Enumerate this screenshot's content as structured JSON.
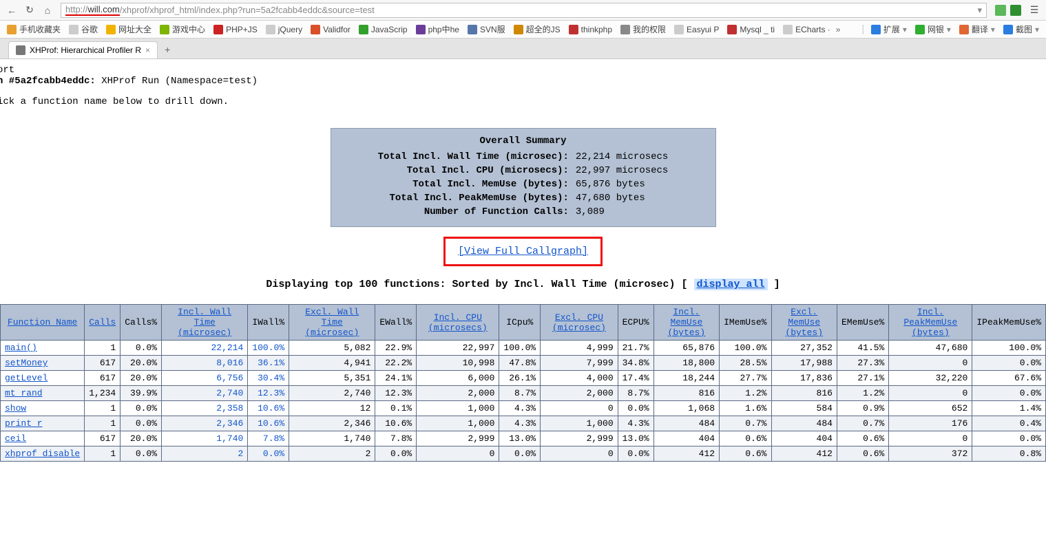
{
  "browser": {
    "url_display_pre": "http://",
    "url_domain": "will.com",
    "url_path": "/xhprof/xhprof_html/index.php?run=5a2fcabb4eddc&source=test",
    "ext_colors": [
      "#5bb85b",
      "#2f8f2f"
    ]
  },
  "bookmarks": [
    {
      "label": "手机收藏夹",
      "color": "#e8a030"
    },
    {
      "label": "谷歌",
      "color": "#cccccc"
    },
    {
      "label": "网址大全",
      "color": "#f0b400"
    },
    {
      "label": "游戏中心",
      "color": "#7db500"
    },
    {
      "label": "PHP+JS",
      "color": "#cc2222"
    },
    {
      "label": "jQuery",
      "color": "#cccccc"
    },
    {
      "label": "Validfor",
      "color": "#d94f2a"
    },
    {
      "label": "JavaScrip",
      "color": "#33a02c"
    },
    {
      "label": "php中he",
      "color": "#6a3d9a"
    },
    {
      "label": "SVN服",
      "color": "#5577aa"
    },
    {
      "label": "超全的JS",
      "color": "#d08800"
    },
    {
      "label": "thinkphp",
      "color": "#c03030"
    },
    {
      "label": "我的权限",
      "color": "#888888"
    },
    {
      "label": "Easyui P",
      "color": "#cccccc"
    },
    {
      "label": "Mysql _ ti",
      "color": "#c03030"
    },
    {
      "label": "ECharts ·",
      "color": "#cccccc"
    }
  ],
  "bookmarks_right": [
    {
      "label": "扩展",
      "color": "#2a7de1"
    },
    {
      "label": "网银",
      "color": "#2fae2f"
    },
    {
      "label": "翻译",
      "color": "#e06633"
    },
    {
      "label": "截图",
      "color": "#2a7de1"
    }
  ],
  "tab": {
    "title": "XHProf: Hierarchical Profiler R"
  },
  "report": {
    "line1": "ort",
    "line2_prefix": "n #5a2fcabb4eddc:",
    "line2_rest": " XHProf Run (Namespace=test)",
    "instruction": "ick a function name below to drill down."
  },
  "summary": {
    "title": "Overall Summary",
    "rows": [
      {
        "label": "Total Incl. Wall Time (microsec):",
        "value": "22,214 microsecs"
      },
      {
        "label": "Total Incl. CPU (microsecs):",
        "value": "22,997 microsecs"
      },
      {
        "label": "Total Incl. MemUse (bytes):",
        "value": "65,876 bytes"
      },
      {
        "label": "Total Incl. PeakMemUse (bytes):",
        "value": "47,680 bytes"
      },
      {
        "label": "Number of Function Calls:",
        "value": "3,089"
      }
    ]
  },
  "callgraph_label": "[View Full Callgraph]",
  "display_line": {
    "prefix": "Displaying top 100 functions: Sorted by Incl. Wall Time (microsec) ",
    "bracket_open": "[ ",
    "link": "display all",
    "bracket_close": " ]"
  },
  "table": {
    "headers": [
      {
        "label": "Function Name",
        "link": true
      },
      {
        "label": "Calls",
        "link": true
      },
      {
        "label": "Calls%",
        "link": false
      },
      {
        "label": "Incl. Wall Time (microsec)",
        "link": true
      },
      {
        "label": "IWall%",
        "link": false
      },
      {
        "label": "Excl. Wall Time (microsec)",
        "link": true
      },
      {
        "label": "EWall%",
        "link": false
      },
      {
        "label": "Incl. CPU (microsecs)",
        "link": true
      },
      {
        "label": "ICpu%",
        "link": false
      },
      {
        "label": "Excl. CPU (microsec)",
        "link": true
      },
      {
        "label": "ECPU%",
        "link": false
      },
      {
        "label": "Incl. MemUse (bytes)",
        "link": true
      },
      {
        "label": "IMemUse%",
        "link": false
      },
      {
        "label": "Excl. MemUse (bytes)",
        "link": true
      },
      {
        "label": "EMemUse%",
        "link": false
      },
      {
        "label": "Incl. PeakMemUse (bytes)",
        "link": true
      },
      {
        "label": "IPeakMemUse%",
        "link": false
      }
    ],
    "rows": [
      {
        "fn": "main()",
        "calls": "1",
        "callsp": "0.0%",
        "iwt": "22,214",
        "iwtp": "100.0%",
        "ewt": "5,082",
        "ewtp": "22.9%",
        "icpu": "22,997",
        "icpup": "100.0%",
        "ecpu": "4,999",
        "ecpup": "21.7%",
        "imu": "65,876",
        "imup": "100.0%",
        "emu": "27,352",
        "emup": "41.5%",
        "ipmu": "47,680",
        "ipmup": "100.0%"
      },
      {
        "fn": "setMoney",
        "calls": "617",
        "callsp": "20.0%",
        "iwt": "8,016",
        "iwtp": "36.1%",
        "ewt": "4,941",
        "ewtp": "22.2%",
        "icpu": "10,998",
        "icpup": "47.8%",
        "ecpu": "7,999",
        "ecpup": "34.8%",
        "imu": "18,800",
        "imup": "28.5%",
        "emu": "17,988",
        "emup": "27.3%",
        "ipmu": "0",
        "ipmup": "0.0%"
      },
      {
        "fn": "getLevel",
        "calls": "617",
        "callsp": "20.0%",
        "iwt": "6,756",
        "iwtp": "30.4%",
        "ewt": "5,351",
        "ewtp": "24.1%",
        "icpu": "6,000",
        "icpup": "26.1%",
        "ecpu": "4,000",
        "ecpup": "17.4%",
        "imu": "18,244",
        "imup": "27.7%",
        "emu": "17,836",
        "emup": "27.1%",
        "ipmu": "32,220",
        "ipmup": "67.6%"
      },
      {
        "fn": "mt_rand",
        "calls": "1,234",
        "callsp": "39.9%",
        "iwt": "2,740",
        "iwtp": "12.3%",
        "ewt": "2,740",
        "ewtp": "12.3%",
        "icpu": "2,000",
        "icpup": "8.7%",
        "ecpu": "2,000",
        "ecpup": "8.7%",
        "imu": "816",
        "imup": "1.2%",
        "emu": "816",
        "emup": "1.2%",
        "ipmu": "0",
        "ipmup": "0.0%"
      },
      {
        "fn": "show",
        "calls": "1",
        "callsp": "0.0%",
        "iwt": "2,358",
        "iwtp": "10.6%",
        "ewt": "12",
        "ewtp": "0.1%",
        "icpu": "1,000",
        "icpup": "4.3%",
        "ecpu": "0",
        "ecpup": "0.0%",
        "imu": "1,068",
        "imup": "1.6%",
        "emu": "584",
        "emup": "0.9%",
        "ipmu": "652",
        "ipmup": "1.4%"
      },
      {
        "fn": "print_r",
        "calls": "1",
        "callsp": "0.0%",
        "iwt": "2,346",
        "iwtp": "10.6%",
        "ewt": "2,346",
        "ewtp": "10.6%",
        "icpu": "1,000",
        "icpup": "4.3%",
        "ecpu": "1,000",
        "ecpup": "4.3%",
        "imu": "484",
        "imup": "0.7%",
        "emu": "484",
        "emup": "0.7%",
        "ipmu": "176",
        "ipmup": "0.4%"
      },
      {
        "fn": "ceil",
        "calls": "617",
        "callsp": "20.0%",
        "iwt": "1,740",
        "iwtp": "7.8%",
        "ewt": "1,740",
        "ewtp": "7.8%",
        "icpu": "2,999",
        "icpup": "13.0%",
        "ecpu": "2,999",
        "ecpup": "13.0%",
        "imu": "404",
        "imup": "0.6%",
        "emu": "404",
        "emup": "0.6%",
        "ipmu": "0",
        "ipmup": "0.0%"
      },
      {
        "fn": "xhprof_disable",
        "calls": "1",
        "callsp": "0.0%",
        "iwt": "2",
        "iwtp": "0.0%",
        "ewt": "2",
        "ewtp": "0.0%",
        "icpu": "0",
        "icpup": "0.0%",
        "ecpu": "0",
        "ecpup": "0.0%",
        "imu": "412",
        "imup": "0.6%",
        "emu": "412",
        "emup": "0.6%",
        "ipmu": "372",
        "ipmup": "0.8%"
      }
    ]
  }
}
